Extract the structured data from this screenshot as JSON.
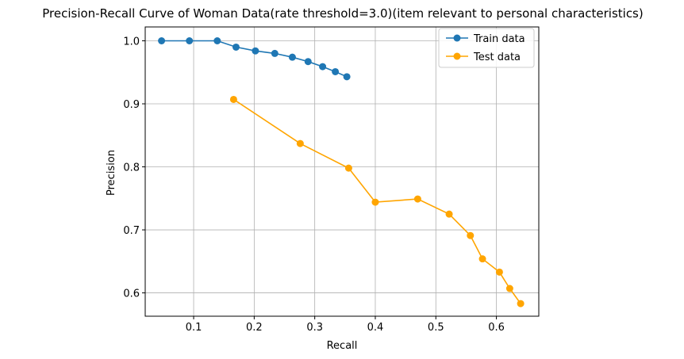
{
  "chart_data": {
    "type": "line",
    "title": "Precision-Recall Curve of Woman Data(rate threshold=3.0)(item relevant to personal characteristics)",
    "xlabel": "Recall",
    "ylabel": "Precision",
    "xlim": [
      0.02,
      0.67
    ],
    "ylim": [
      0.563,
      1.022
    ],
    "xticks": [
      0.1,
      0.2,
      0.3,
      0.4,
      0.5,
      0.6
    ],
    "xtick_labels": [
      "0.1",
      "0.2",
      "0.3",
      "0.4",
      "0.5",
      "0.6"
    ],
    "yticks": [
      0.6,
      0.7,
      0.8,
      0.9,
      1.0
    ],
    "ytick_labels": [
      "0.6",
      "0.7",
      "0.8",
      "0.9",
      "1.0"
    ],
    "grid": true,
    "legend_position": "top-right",
    "series": [
      {
        "name": "Train data",
        "color": "#1f77b4",
        "x": [
          0.047,
          0.093,
          0.139,
          0.17,
          0.202,
          0.234,
          0.263,
          0.289,
          0.313,
          0.334,
          0.353
        ],
        "y": [
          1.0,
          1.0,
          1.0,
          0.99,
          0.984,
          0.98,
          0.974,
          0.967,
          0.959,
          0.951,
          0.943
        ]
      },
      {
        "name": "Test data",
        "color": "#ffa500",
        "x": [
          0.166,
          0.276,
          0.356,
          0.4,
          0.47,
          0.522,
          0.557,
          0.577,
          0.605,
          0.622,
          0.64
        ],
        "y": [
          0.907,
          0.837,
          0.798,
          0.744,
          0.749,
          0.725,
          0.691,
          0.654,
          0.633,
          0.607,
          0.583
        ]
      }
    ]
  }
}
